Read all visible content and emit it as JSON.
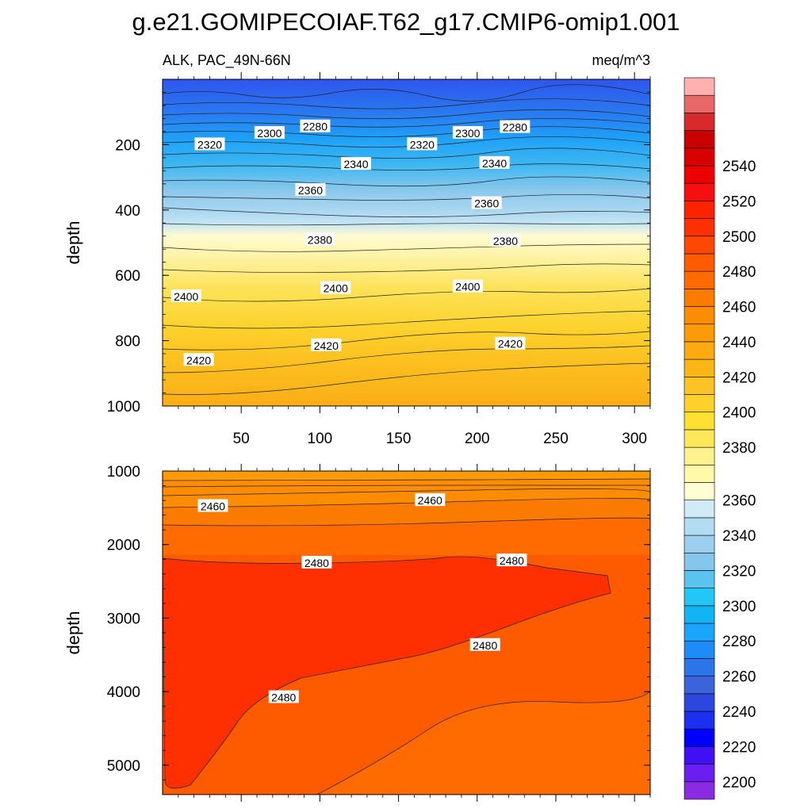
{
  "chart_data": {
    "type": "contour",
    "title": "g.e21.GOMIPECOIAF.T62_g17.CMIP6-omip1.001",
    "variable_label": "ALK, PAC_49N-66N",
    "units_label": "meq/m^3",
    "ylabel": "depth",
    "upper_panel": {
      "ylim": [
        0,
        1000
      ],
      "xlim": [
        0,
        310
      ],
      "y_ticks": [
        "200",
        "400",
        "600",
        "800",
        "1000"
      ],
      "x_ticks": [
        "50",
        "100",
        "150",
        "200",
        "250",
        "300"
      ],
      "contour_labels": [
        {
          "text": "2280",
          "x": 97,
          "y": 145
        },
        {
          "text": "2300",
          "x": 68,
          "y": 165
        },
        {
          "text": "2320",
          "x": 30,
          "y": 200
        },
        {
          "text": "2280",
          "x": 224,
          "y": 147
        },
        {
          "text": "2300",
          "x": 194,
          "y": 165
        },
        {
          "text": "2320",
          "x": 165,
          "y": 200
        },
        {
          "text": "2340",
          "x": 123,
          "y": 260
        },
        {
          "text": "2340",
          "x": 211,
          "y": 257
        },
        {
          "text": "2360",
          "x": 94,
          "y": 340
        },
        {
          "text": "2360",
          "x": 206,
          "y": 380
        },
        {
          "text": "2380",
          "x": 100,
          "y": 492
        },
        {
          "text": "2380",
          "x": 218,
          "y": 495
        },
        {
          "text": "2400",
          "x": 15,
          "y": 665
        },
        {
          "text": "2400",
          "x": 110,
          "y": 640
        },
        {
          "text": "2400",
          "x": 194,
          "y": 635
        },
        {
          "text": "2420",
          "x": 23,
          "y": 860
        },
        {
          "text": "2420",
          "x": 104,
          "y": 815
        },
        {
          "text": "2420",
          "x": 221,
          "y": 810
        }
      ]
    },
    "lower_panel": {
      "ylim": [
        1000,
        5400
      ],
      "xlim": [
        0,
        310
      ],
      "y_ticks": [
        "1000",
        "2000",
        "3000",
        "4000",
        "5000"
      ],
      "contour_labels": [
        {
          "text": "2460",
          "x": 32,
          "y": 1480
        },
        {
          "text": "2460",
          "x": 170,
          "y": 1400
        },
        {
          "text": "2480",
          "x": 98,
          "y": 2250
        },
        {
          "text": "2480",
          "x": 222,
          "y": 2220
        },
        {
          "text": "2480",
          "x": 205,
          "y": 3370
        },
        {
          "text": "2480",
          "x": 77,
          "y": 4080
        }
      ]
    },
    "colorbar": {
      "ticks": [
        "2200",
        "2220",
        "2240",
        "2260",
        "2280",
        "2300",
        "2320",
        "2340",
        "2360",
        "2380",
        "2400",
        "2420",
        "2440",
        "2460",
        "2480",
        "2500",
        "2520",
        "2540"
      ],
      "colors_bottom_to_top": [
        "#8a2be2",
        "#6a1ff0",
        "#3f10f5",
        "#0000ff",
        "#1b30ee",
        "#2e46e0",
        "#3a63dc",
        "#2c74ea",
        "#1e8cf8",
        "#1aa4fc",
        "#12b5f4",
        "#23c7f7",
        "#5bc3f0",
        "#84c6ec",
        "#9ccfee",
        "#b2dcf2",
        "#d0eaf6",
        "#fffdd2",
        "#fffaa8",
        "#fff28e",
        "#fde85a",
        "#fee033",
        "#fdd12a",
        "#fcc324",
        "#fbb616",
        "#fdaa12",
        "#fc9a08",
        "#fd8c00",
        "#fb7b00",
        "#ff6b00",
        "#fe5a00",
        "#fd4800",
        "#fe2f00",
        "#ff2200",
        "#f70e0e",
        "#ee0000",
        "#d80000",
        "#c80000",
        "#d82a2a",
        "#e86868",
        "#ffb0b0"
      ]
    }
  }
}
